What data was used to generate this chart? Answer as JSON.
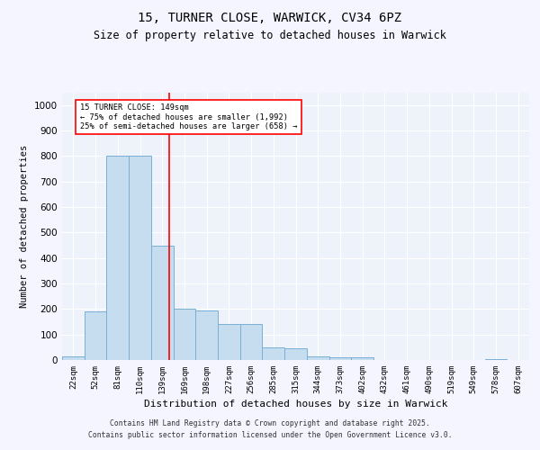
{
  "title1": "15, TURNER CLOSE, WARWICK, CV34 6PZ",
  "title2": "Size of property relative to detached houses in Warwick",
  "xlabel": "Distribution of detached houses by size in Warwick",
  "ylabel": "Number of detached properties",
  "bar_labels": [
    "22sqm",
    "52sqm",
    "81sqm",
    "110sqm",
    "139sqm",
    "169sqm",
    "198sqm",
    "227sqm",
    "256sqm",
    "285sqm",
    "315sqm",
    "344sqm",
    "373sqm",
    "402sqm",
    "432sqm",
    "461sqm",
    "490sqm",
    "519sqm",
    "549sqm",
    "578sqm",
    "607sqm"
  ],
  "bar_values": [
    15,
    190,
    800,
    800,
    450,
    200,
    195,
    140,
    140,
    50,
    45,
    15,
    10,
    10,
    0,
    0,
    0,
    0,
    0,
    5,
    0
  ],
  "bar_color": "#c6dcef",
  "bar_edge_color": "#7aafd4",
  "annotation_label": "15 TURNER CLOSE: 149sqm",
  "annotation_line1": "← 75% of detached houses are smaller (1,992)",
  "annotation_line2": "25% of semi-detached houses are larger (658) →",
  "red_line_x": 4.33,
  "ylim": [
    0,
    1050
  ],
  "yticks": [
    0,
    100,
    200,
    300,
    400,
    500,
    600,
    700,
    800,
    900,
    1000
  ],
  "background_color": "#eef2fa",
  "grid_color": "#ffffff",
  "fig_background": "#f5f5ff",
  "footer_line1": "Contains HM Land Registry data © Crown copyright and database right 2025.",
  "footer_line2": "Contains public sector information licensed under the Open Government Licence v3.0."
}
